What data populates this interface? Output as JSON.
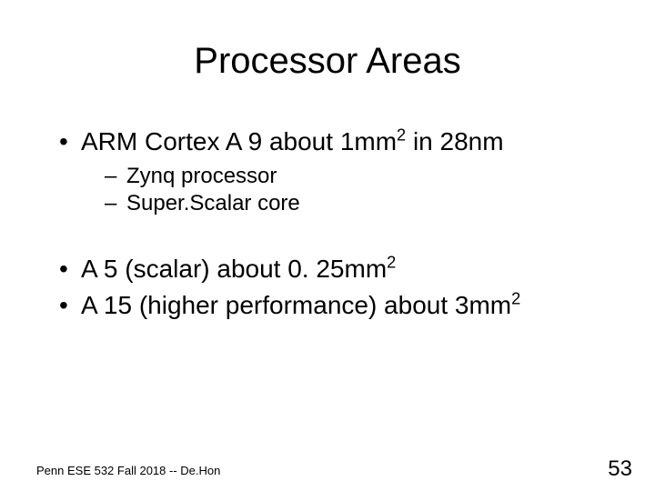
{
  "title": "Processor Areas",
  "bullets": {
    "b1_pre": "ARM Cortex A 9 about 1mm",
    "b1_sup": "2",
    "b1_post": " in 28nm",
    "b1_sub1": "Zynq processor",
    "b1_sub2": "Super.Scalar core",
    "b2_pre": "A 5 (scalar) about 0. 25mm",
    "b2_sup": "2",
    "b3_pre": "A 15 (higher performance) about 3mm",
    "b3_sup": "2"
  },
  "footer": "Penn ESE 532 Fall 2018 -- De.Hon",
  "page_number": "53",
  "colors": {
    "background": "#ffffff",
    "text": "#000000"
  },
  "fontsize": {
    "title": 40,
    "bullet_l1": 28,
    "bullet_l2": 24,
    "footer": 13,
    "page_number": 24
  }
}
